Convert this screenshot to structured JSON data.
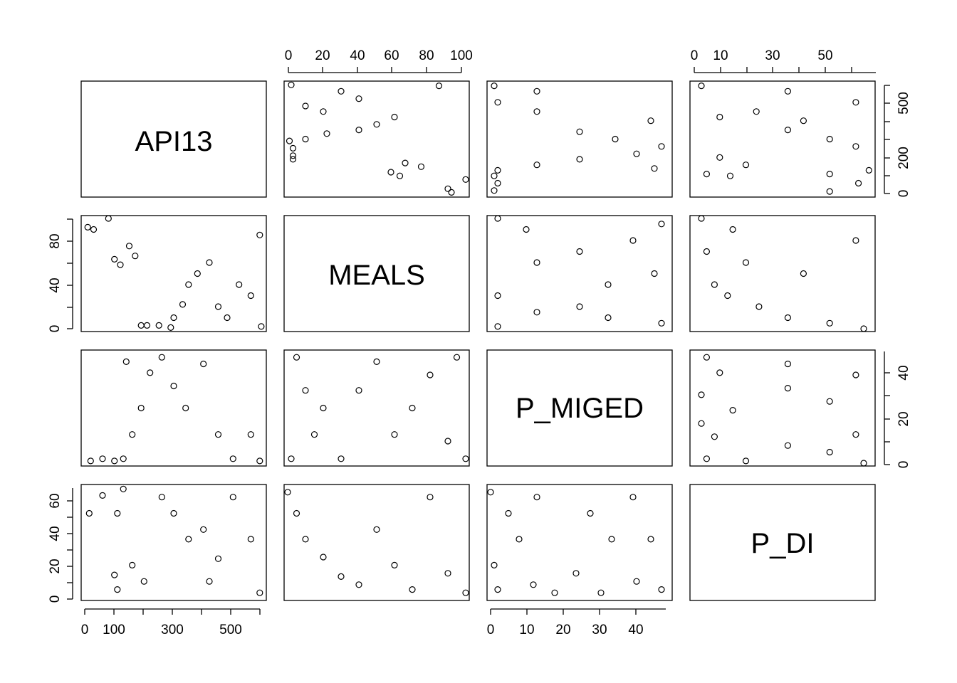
{
  "chart_data": {
    "type": "scatter",
    "subtype": "pairs-matrix",
    "variables": [
      "API13",
      "MEALS",
      "P_MIGED",
      "P_DI"
    ],
    "ranges": {
      "API13": [
        0,
        600
      ],
      "MEALS": [
        0,
        100
      ],
      "P_MIGED": [
        0,
        50
      ],
      "P_DI": [
        0,
        68
      ]
    },
    "tick_labels": {
      "API13_bottom": [
        "0",
        "100",
        "300",
        "500"
      ],
      "API13_right": [
        "0",
        "200",
        "500"
      ],
      "MEALS_top": [
        "0",
        "20",
        "40",
        "60",
        "80",
        "100"
      ],
      "MEALS_left": [
        "0",
        "40",
        "80"
      ],
      "P_MIGED_bottom": [
        "0",
        "10",
        "20",
        "30",
        "40"
      ],
      "P_MIGED_right": [
        "0",
        "20",
        "40"
      ],
      "P_DI_top": [
        "0",
        "10",
        "30",
        "50"
      ],
      "P_DI_left": [
        "0",
        "20",
        "40",
        "60"
      ]
    },
    "grid": false,
    "legend": "none",
    "sample_points": {
      "API13_vs_MEALS": [
        [
          10,
          92
        ],
        [
          30,
          90
        ],
        [
          80,
          100
        ],
        [
          100,
          63
        ],
        [
          120,
          58
        ],
        [
          150,
          75
        ],
        [
          170,
          66
        ],
        [
          190,
          3
        ],
        [
          210,
          3
        ],
        [
          250,
          3
        ],
        [
          290,
          1
        ],
        [
          300,
          10
        ],
        [
          330,
          22
        ],
        [
          350,
          40
        ],
        [
          380,
          50
        ],
        [
          420,
          60
        ],
        [
          450,
          20
        ],
        [
          480,
          10
        ],
        [
          520,
          40
        ],
        [
          560,
          30
        ],
        [
          590,
          85
        ],
        [
          595,
          2
        ]
      ],
      "API13_vs_PMIGED": [
        [
          20,
          1
        ],
        [
          60,
          2
        ],
        [
          100,
          1
        ],
        [
          130,
          2
        ],
        [
          140,
          46
        ],
        [
          160,
          13
        ],
        [
          190,
          25
        ],
        [
          220,
          41
        ],
        [
          260,
          48
        ],
        [
          300,
          35
        ],
        [
          340,
          25
        ],
        [
          400,
          45
        ],
        [
          450,
          13
        ],
        [
          500,
          2
        ],
        [
          560,
          13
        ],
        [
          590,
          1
        ]
      ],
      "API13_vs_PDI": [
        [
          15,
          52
        ],
        [
          60,
          63
        ],
        [
          110,
          52
        ],
        [
          130,
          67
        ],
        [
          100,
          14
        ],
        [
          110,
          5
        ],
        [
          160,
          20
        ],
        [
          200,
          10
        ],
        [
          260,
          62
        ],
        [
          300,
          52
        ],
        [
          350,
          36
        ],
        [
          400,
          42
        ],
        [
          420,
          10
        ],
        [
          450,
          24
        ],
        [
          500,
          62
        ],
        [
          560,
          36
        ],
        [
          590,
          3
        ]
      ],
      "MEALS_vs_PMIGED": [
        [
          2,
          2
        ],
        [
          5,
          48
        ],
        [
          10,
          33
        ],
        [
          15,
          13
        ],
        [
          20,
          25
        ],
        [
          30,
          2
        ],
        [
          40,
          33
        ],
        [
          50,
          46
        ],
        [
          60,
          13
        ],
        [
          70,
          25
        ],
        [
          80,
          40
        ],
        [
          90,
          10
        ],
        [
          95,
          48
        ],
        [
          100,
          2
        ]
      ],
      "MEALS_vs_PDI": [
        [
          0,
          65
        ],
        [
          5,
          52
        ],
        [
          10,
          36
        ],
        [
          20,
          25
        ],
        [
          30,
          13
        ],
        [
          40,
          8
        ],
        [
          50,
          42
        ],
        [
          60,
          20
        ],
        [
          70,
          5
        ],
        [
          80,
          62
        ],
        [
          90,
          15
        ],
        [
          100,
          3
        ]
      ],
      "PMIGED_vs_PDI": [
        [
          0,
          65
        ],
        [
          1,
          20
        ],
        [
          2,
          5
        ],
        [
          5,
          52
        ],
        [
          8,
          36
        ],
        [
          12,
          8
        ],
        [
          13,
          62
        ],
        [
          18,
          3
        ],
        [
          24,
          15
        ],
        [
          28,
          52
        ],
        [
          31,
          3
        ],
        [
          34,
          36
        ],
        [
          40,
          62
        ],
        [
          41,
          10
        ],
        [
          45,
          36
        ],
        [
          48,
          5
        ]
      ]
    }
  }
}
